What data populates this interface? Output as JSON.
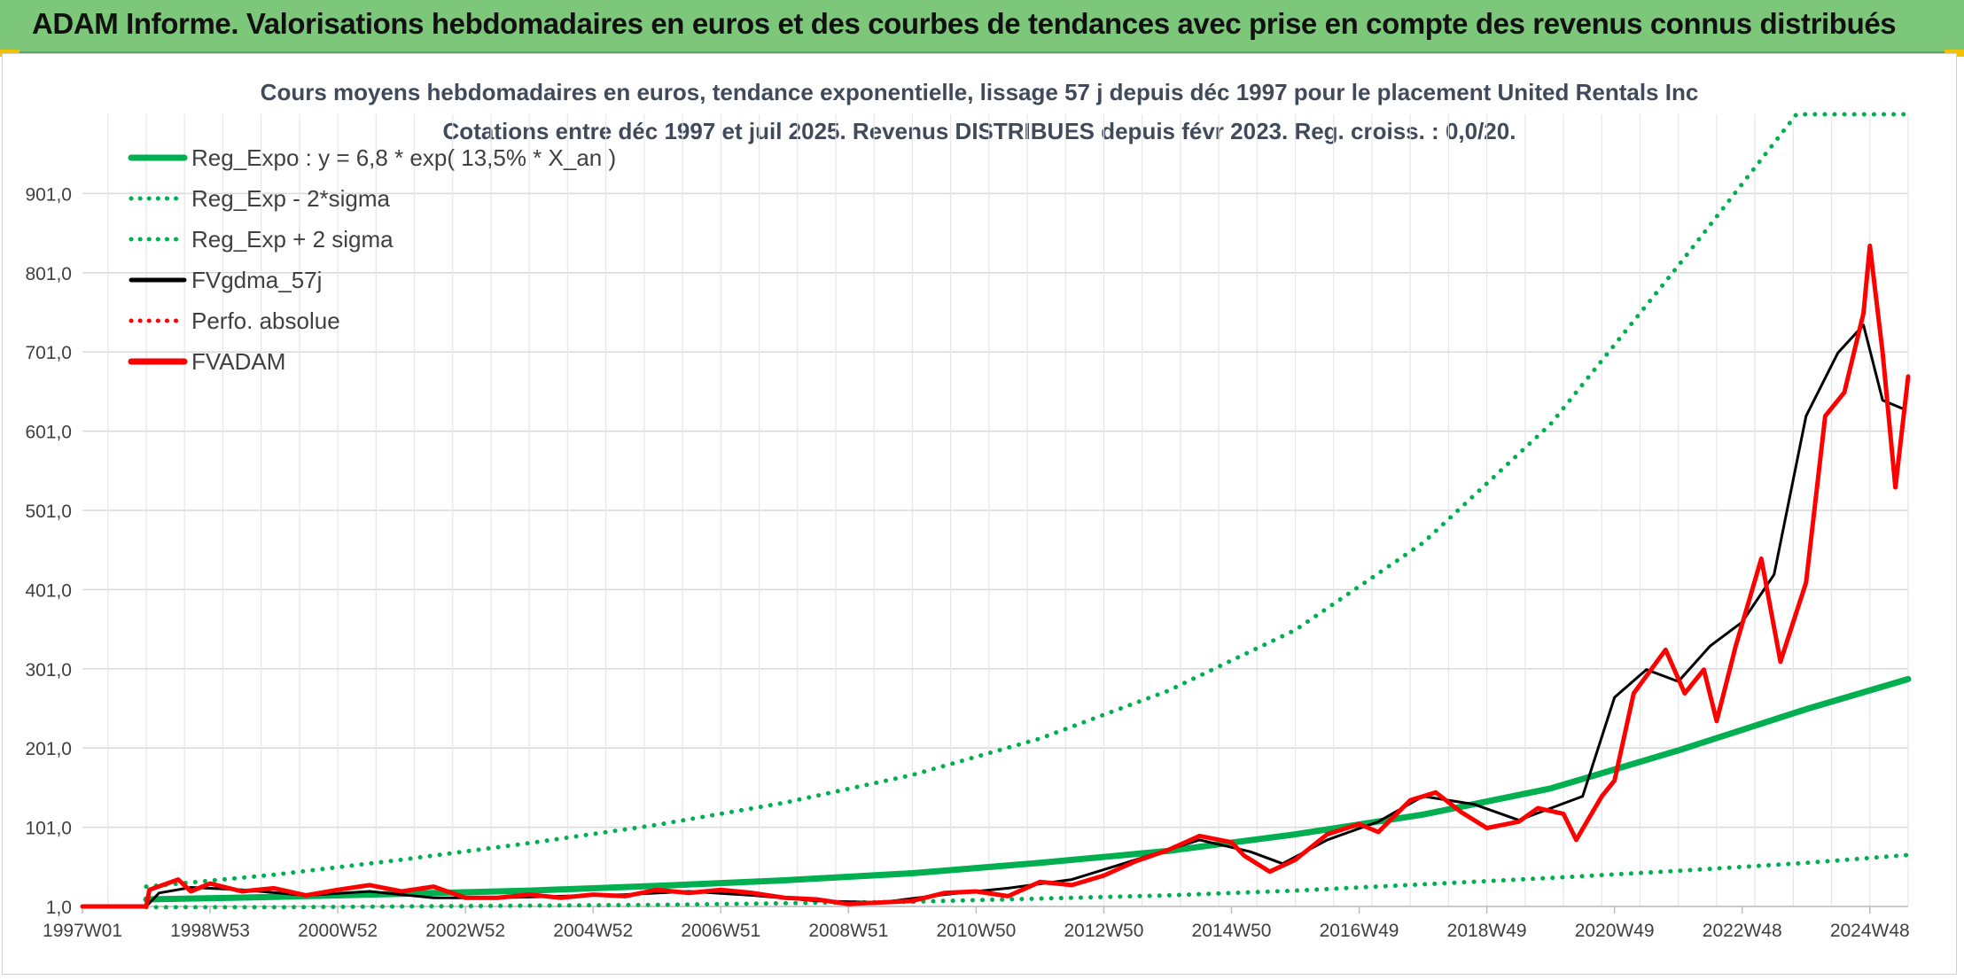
{
  "header": {
    "title": "ADAM Informe. Valorisations hebdomadaires en euros et des courbes de tendances avec prise en compte des revenus connus distribués"
  },
  "colors": {
    "banner": "#7dc77a",
    "reg_green": "#00b050",
    "fvgdma": "#000000",
    "fvadam": "#ff0000",
    "grid": "#d9d9d9"
  },
  "chart_data": {
    "type": "line",
    "title": "Cours moyens hebdomadaires en euros, tendance exponentielle, lissage 57 j depuis déc 1997 pour le placement United Rentals Inc",
    "subtitle": "Cotations entre déc 1997 et juil 2025. Revenus DISTRIBUES depuis févr 2023. Reg. croiss. : 0,0/20.",
    "xlabel": "",
    "ylabel": "",
    "x_range": [
      1997.0,
      2025.6
    ],
    "ylim": [
      1.0,
      1001.0
    ],
    "y_ticks": [
      "1,0",
      "101,0",
      "201,0",
      "301,0",
      "401,0",
      "501,0",
      "601,0",
      "701,0",
      "801,0",
      "901,0"
    ],
    "x_ticks": [
      {
        "label": "1997W01",
        "x": 1997.0
      },
      {
        "label": "1998W53",
        "x": 1999.0
      },
      {
        "label": "2000W52",
        "x": 2001.0
      },
      {
        "label": "2002W52",
        "x": 2003.0
      },
      {
        "label": "2004W52",
        "x": 2005.0
      },
      {
        "label": "2006W51",
        "x": 2007.0
      },
      {
        "label": "2008W51",
        "x": 2009.0
      },
      {
        "label": "2010W50",
        "x": 2011.0
      },
      {
        "label": "2012W50",
        "x": 2013.0
      },
      {
        "label": "2014W50",
        "x": 2015.0
      },
      {
        "label": "2016W49",
        "x": 2017.0
      },
      {
        "label": "2018W49",
        "x": 2019.0
      },
      {
        "label": "2020W49",
        "x": 2021.0
      },
      {
        "label": "2022W48",
        "x": 2023.0
      },
      {
        "label": "2024W48",
        "x": 2025.0
      }
    ],
    "grid": true,
    "legend_position": "top-left",
    "series": [
      {
        "name": "Reg_Expo : y = 6,8 * exp( 13,5% *  X_an )",
        "style": "solid",
        "color": "#00b050",
        "points": [
          [
            1998.0,
            10
          ],
          [
            2000,
            13
          ],
          [
            2002,
            17
          ],
          [
            2004,
            21
          ],
          [
            2006,
            27
          ],
          [
            2008,
            34
          ],
          [
            2010,
            43
          ],
          [
            2012,
            56
          ],
          [
            2014,
            71
          ],
          [
            2016,
            92
          ],
          [
            2018,
            117
          ],
          [
            2020,
            150
          ],
          [
            2022,
            198
          ],
          [
            2024,
            250
          ],
          [
            2025.6,
            288
          ]
        ]
      },
      {
        "name": "Reg_Exp - 2*sigma",
        "style": "dotted",
        "color": "#00b050",
        "points": [
          [
            1998.0,
            0
          ],
          [
            2000,
            0
          ],
          [
            2002,
            1
          ],
          [
            2004,
            2
          ],
          [
            2006,
            3
          ],
          [
            2008,
            5
          ],
          [
            2010,
            7
          ],
          [
            2012,
            11
          ],
          [
            2014,
            15
          ],
          [
            2016,
            21
          ],
          [
            2018,
            29
          ],
          [
            2020,
            37
          ],
          [
            2022,
            46
          ],
          [
            2024,
            56
          ],
          [
            2025.6,
            66
          ]
        ]
      },
      {
        "name": "Reg_Exp + 2 sigma",
        "style": "dotted",
        "color": "#00b050",
        "points": [
          [
            1998.0,
            26
          ],
          [
            2000,
            41
          ],
          [
            2002,
            60
          ],
          [
            2004,
            81
          ],
          [
            2006,
            104
          ],
          [
            2008,
            132
          ],
          [
            2010,
            167
          ],
          [
            2012,
            213
          ],
          [
            2014,
            273
          ],
          [
            2016,
            350
          ],
          [
            2018,
            460
          ],
          [
            2020,
            610
          ],
          [
            2022,
            810
          ],
          [
            2023.85,
            1001
          ],
          [
            2025.6,
            1001
          ]
        ]
      },
      {
        "name": "FVgdma_57j",
        "style": "solid",
        "color": "#000000",
        "points": [
          [
            1997.0,
            1
          ],
          [
            1998.0,
            1
          ],
          [
            1998.2,
            18
          ],
          [
            1998.7,
            25
          ],
          [
            1999.5,
            22
          ],
          [
            2000.5,
            15
          ],
          [
            2001.5,
            20
          ],
          [
            2002.5,
            12
          ],
          [
            2003.5,
            12
          ],
          [
            2004.5,
            14
          ],
          [
            2005.5,
            16
          ],
          [
            2006.5,
            20
          ],
          [
            2007.5,
            15
          ],
          [
            2008.5,
            8
          ],
          [
            2009.5,
            6
          ],
          [
            2010.5,
            16
          ],
          [
            2011.5,
            24
          ],
          [
            2012.5,
            35
          ],
          [
            2013.5,
            60
          ],
          [
            2014.5,
            85
          ],
          [
            2015.3,
            70
          ],
          [
            2015.8,
            55
          ],
          [
            2016.5,
            85
          ],
          [
            2017.3,
            108
          ],
          [
            2018,
            140
          ],
          [
            2018.8,
            130
          ],
          [
            2019.5,
            110
          ],
          [
            2020,
            125
          ],
          [
            2020.5,
            140
          ],
          [
            2021,
            265
          ],
          [
            2021.5,
            300
          ],
          [
            2022,
            285
          ],
          [
            2022.5,
            330
          ],
          [
            2023,
            360
          ],
          [
            2023.5,
            420
          ],
          [
            2024,
            620
          ],
          [
            2024.5,
            700
          ],
          [
            2024.9,
            735
          ],
          [
            2025.2,
            640
          ],
          [
            2025.5,
            630
          ]
        ]
      },
      {
        "name": "Perfo. absolue",
        "style": "dotted",
        "color": "#ff0000",
        "points": []
      },
      {
        "name": "FVADAM",
        "style": "solid",
        "color": "#ff0000",
        "points": [
          [
            1997.0,
            1
          ],
          [
            1998.0,
            1
          ],
          [
            1998.05,
            22
          ],
          [
            1998.5,
            35
          ],
          [
            1998.7,
            20
          ],
          [
            1999.0,
            30
          ],
          [
            1999.5,
            20
          ],
          [
            2000,
            24
          ],
          [
            2000.5,
            15
          ],
          [
            2001,
            22
          ],
          [
            2001.5,
            28
          ],
          [
            2002,
            20
          ],
          [
            2002.5,
            26
          ],
          [
            2003,
            12
          ],
          [
            2003.5,
            12
          ],
          [
            2004,
            16
          ],
          [
            2004.5,
            12
          ],
          [
            2005,
            16
          ],
          [
            2005.5,
            14
          ],
          [
            2006,
            22
          ],
          [
            2006.5,
            18
          ],
          [
            2007,
            22
          ],
          [
            2007.5,
            18
          ],
          [
            2008,
            12
          ],
          [
            2008.5,
            10
          ],
          [
            2009,
            4
          ],
          [
            2009.5,
            6
          ],
          [
            2010,
            8
          ],
          [
            2010.5,
            18
          ],
          [
            2011,
            20
          ],
          [
            2011.5,
            14
          ],
          [
            2012,
            32
          ],
          [
            2012.5,
            28
          ],
          [
            2013,
            40
          ],
          [
            2013.5,
            58
          ],
          [
            2014,
            72
          ],
          [
            2014.5,
            90
          ],
          [
            2015,
            82
          ],
          [
            2015.2,
            65
          ],
          [
            2015.6,
            45
          ],
          [
            2016,
            60
          ],
          [
            2016.5,
            92
          ],
          [
            2017,
            105
          ],
          [
            2017.3,
            95
          ],
          [
            2017.8,
            135
          ],
          [
            2018.2,
            145
          ],
          [
            2018.6,
            120
          ],
          [
            2019,
            100
          ],
          [
            2019.5,
            108
          ],
          [
            2019.8,
            125
          ],
          [
            2020.2,
            118
          ],
          [
            2020.4,
            85
          ],
          [
            2020.8,
            140
          ],
          [
            2021.0,
            160
          ],
          [
            2021.3,
            270
          ],
          [
            2021.8,
            325
          ],
          [
            2022.1,
            270
          ],
          [
            2022.4,
            300
          ],
          [
            2022.6,
            235
          ],
          [
            2022.9,
            330
          ],
          [
            2023.3,
            440
          ],
          [
            2023.6,
            310
          ],
          [
            2024,
            410
          ],
          [
            2024.3,
            620
          ],
          [
            2024.6,
            650
          ],
          [
            2024.9,
            750
          ],
          [
            2025.0,
            835
          ],
          [
            2025.2,
            700
          ],
          [
            2025.4,
            530
          ],
          [
            2025.5,
            600
          ],
          [
            2025.6,
            670
          ]
        ]
      }
    ]
  }
}
